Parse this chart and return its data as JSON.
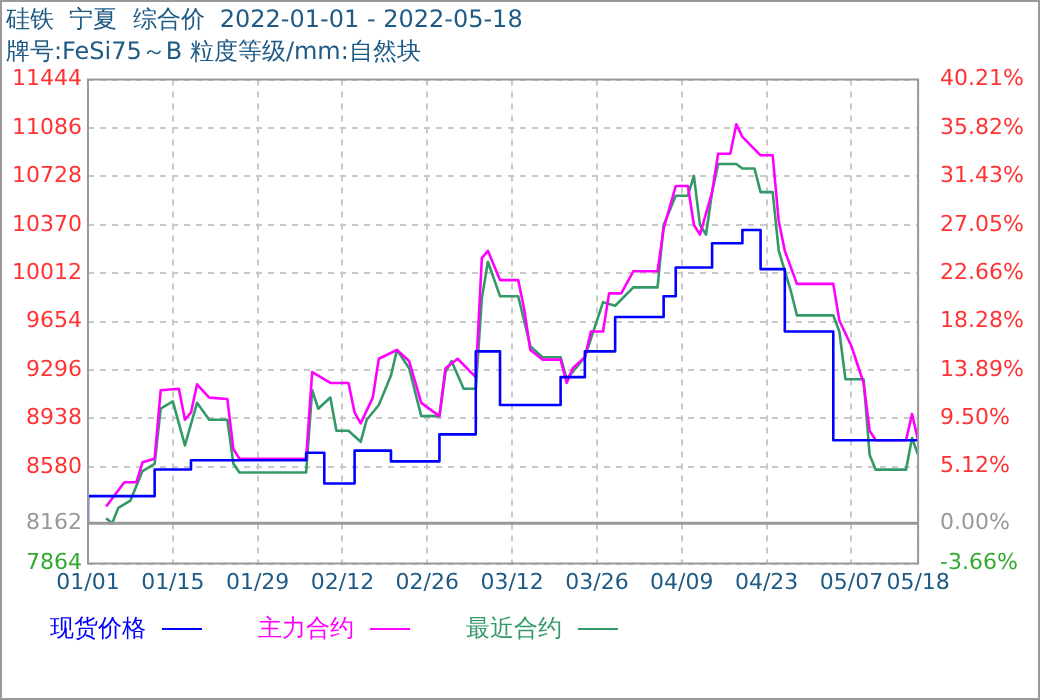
{
  "chart_data": {
    "type": "line",
    "title": "硅铁  宁夏  综合价  2022-01-01 - 2022-05-18",
    "subtitle": "牌号:FeSi75～B 粒度等级/mm:自然块",
    "xlim": [
      "2022-01-01",
      "2022-05-18"
    ],
    "xticks": [
      {
        "value": "2022-01-01",
        "label": "01/01"
      },
      {
        "value": "2022-01-15",
        "label": "01/15"
      },
      {
        "value": "2022-01-29",
        "label": "01/29"
      },
      {
        "value": "2022-02-12",
        "label": "02/12"
      },
      {
        "value": "2022-02-26",
        "label": "02/26"
      },
      {
        "value": "2022-03-12",
        "label": "03/12"
      },
      {
        "value": "2022-03-26",
        "label": "03/26"
      },
      {
        "value": "2022-04-09",
        "label": "04/09"
      },
      {
        "value": "2022-04-23",
        "label": "04/23"
      },
      {
        "value": "2022-05-07",
        "label": "05/07"
      },
      {
        "value": "2022-05-18",
        "label": "05/18"
      }
    ],
    "ylim": [
      7864,
      11444
    ],
    "yticks": [
      7864,
      8162,
      8580,
      8938,
      9296,
      9654,
      10012,
      10370,
      10728,
      11086,
      11444
    ],
    "y2lim": [
      -3.66,
      40.21
    ],
    "y2ticks": [
      {
        "value": -3.66,
        "label": "-3.66%"
      },
      {
        "value": 0,
        "label": "0.00%"
      },
      {
        "value": 5.12,
        "label": "5.12%"
      },
      {
        "value": 9.5,
        "label": "9.50%"
      },
      {
        "value": 13.89,
        "label": "13.89%"
      },
      {
        "value": 18.28,
        "label": "18.28%"
      },
      {
        "value": 22.66,
        "label": "22.66%"
      },
      {
        "value": 27.05,
        "label": "27.05%"
      },
      {
        "value": 31.43,
        "label": "31.43%"
      },
      {
        "value": 35.82,
        "label": "35.82%"
      },
      {
        "value": 40.21,
        "label": "40.21%"
      }
    ],
    "ref_lines": [
      {
        "axis": "y2",
        "value": 0,
        "color": "#999999",
        "line_style": "solid"
      }
    ],
    "grid": true,
    "legend": "bottom",
    "marker": "none",
    "series": [
      {
        "name": "现货价格",
        "type": "step",
        "color": "#0000ff",
        "x": [
          "2022-01-01",
          "2022-01-12",
          "2022-01-18",
          "2022-02-06",
          "2022-02-09",
          "2022-02-14",
          "2022-02-20",
          "2022-02-28",
          "2022-03-06",
          "2022-03-10",
          "2022-03-20",
          "2022-03-24",
          "2022-03-29",
          "2022-04-06",
          "2022-04-08",
          "2022-04-14",
          "2022-04-19",
          "2022-04-22",
          "2022-04-26",
          "2022-05-04",
          "2022-05-10",
          "2022-05-18"
        ],
        "values": [
          8162,
          8363,
          8560,
          8629,
          8684,
          8456,
          8700,
          8620,
          8820,
          9434,
          9037,
          9243,
          9434,
          9688,
          9842,
          10054,
          10233,
          10331,
          10042,
          9581,
          8776,
          8776
        ]
      },
      {
        "name": "主力合约",
        "color": "#ff00ff",
        "x": [
          "2022-01-04",
          "2022-01-07",
          "2022-01-09",
          "2022-01-10",
          "2022-01-12",
          "2022-01-13",
          "2022-01-16",
          "2022-01-17",
          "2022-01-18",
          "2022-01-19",
          "2022-01-21",
          "2022-01-24",
          "2022-01-25",
          "2022-01-26",
          "2022-02-06",
          "2022-02-07",
          "2022-02-08",
          "2022-02-10",
          "2022-02-13",
          "2022-02-14",
          "2022-02-15",
          "2022-02-17",
          "2022-02-18",
          "2022-02-21",
          "2022-02-23",
          "2022-02-25",
          "2022-02-28",
          "2022-03-01",
          "2022-03-03",
          "2022-03-06",
          "2022-03-07",
          "2022-03-08",
          "2022-03-10",
          "2022-03-13",
          "2022-03-14",
          "2022-03-15",
          "2022-03-17",
          "2022-03-20",
          "2022-03-21",
          "2022-03-22",
          "2022-03-24",
          "2022-03-25",
          "2022-03-27",
          "2022-03-28",
          "2022-03-30",
          "2022-04-01",
          "2022-04-05",
          "2022-04-06",
          "2022-04-08",
          "2022-04-10",
          "2022-04-11",
          "2022-04-12",
          "2022-04-14",
          "2022-04-15",
          "2022-04-17",
          "2022-04-18",
          "2022-04-19",
          "2022-04-22",
          "2022-04-24",
          "2022-04-25",
          "2022-04-26",
          "2022-04-28",
          "2022-05-04",
          "2022-05-05",
          "2022-05-07",
          "2022-05-09",
          "2022-05-10",
          "2022-05-11",
          "2022-05-16",
          "2022-05-17",
          "2022-05-18"
        ],
        "values": [
          8287,
          8466,
          8466,
          8613,
          8640,
          9146,
          9157,
          8928,
          8982,
          9190,
          9092,
          9081,
          8711,
          8640,
          8640,
          9281,
          9255,
          9200,
          9200,
          8982,
          8901,
          9092,
          9379,
          9444,
          9362,
          9053,
          8955,
          9309,
          9379,
          9243,
          10124,
          10178,
          9961,
          9961,
          9744,
          9444,
          9373,
          9373,
          9200,
          9309,
          9390,
          9581,
          9581,
          9863,
          9863,
          10026,
          10026,
          10341,
          10657,
          10657,
          10368,
          10298,
          10612,
          10895,
          10895,
          11113,
          11020,
          10884,
          10884,
          10396,
          10178,
          9933,
          9933,
          9662,
          9472,
          9200,
          8847,
          8776,
          8776,
          8971,
          8776
        ]
      },
      {
        "name": "最近合约",
        "color": "#339966",
        "x": [
          "2022-01-04",
          "2022-01-05",
          "2022-01-06",
          "2022-01-08",
          "2022-01-09",
          "2022-01-10",
          "2022-01-12",
          "2022-01-13",
          "2022-01-15",
          "2022-01-17",
          "2022-01-19",
          "2022-01-21",
          "2022-01-24",
          "2022-01-25",
          "2022-01-26",
          "2022-02-06",
          "2022-02-07",
          "2022-02-08",
          "2022-02-10",
          "2022-02-11",
          "2022-02-13",
          "2022-02-15",
          "2022-02-16",
          "2022-02-18",
          "2022-02-20",
          "2022-02-21",
          "2022-02-23",
          "2022-02-25",
          "2022-02-28",
          "2022-03-01",
          "2022-03-02",
          "2022-03-04",
          "2022-03-06",
          "2022-03-07",
          "2022-03-08",
          "2022-03-10",
          "2022-03-13",
          "2022-03-15",
          "2022-03-17",
          "2022-03-20",
          "2022-03-21",
          "2022-03-24",
          "2022-03-25",
          "2022-03-27",
          "2022-03-29",
          "2022-04-01",
          "2022-04-05",
          "2022-04-06",
          "2022-04-08",
          "2022-04-10",
          "2022-04-11",
          "2022-04-12",
          "2022-04-13",
          "2022-04-14",
          "2022-04-15",
          "2022-04-18",
          "2022-04-19",
          "2022-04-21",
          "2022-04-22",
          "2022-04-24",
          "2022-04-25",
          "2022-04-27",
          "2022-04-28",
          "2022-05-04",
          "2022-05-05",
          "2022-05-06",
          "2022-05-09",
          "2022-05-10",
          "2022-05-11",
          "2022-05-16",
          "2022-05-17",
          "2022-05-18"
        ],
        "values": [
          8200,
          8162,
          8276,
          8330,
          8439,
          8548,
          8602,
          9010,
          9064,
          8738,
          9053,
          8928,
          8928,
          8602,
          8538,
          8538,
          9146,
          9010,
          9092,
          8847,
          8847,
          8765,
          8928,
          9037,
          9255,
          9444,
          9309,
          8955,
          8955,
          9281,
          9362,
          9157,
          9157,
          9826,
          10097,
          9842,
          9842,
          9472,
          9390,
          9390,
          9228,
          9390,
          9526,
          9798,
          9771,
          9907,
          9907,
          10368,
          10585,
          10585,
          10732,
          10368,
          10298,
          10612,
          10820,
          10820,
          10786,
          10786,
          10612,
          10612,
          10178,
          9880,
          9700,
          9700,
          9581,
          9228,
          9228,
          8668,
          8559,
          8559,
          8793,
          8668
        ]
      }
    ]
  }
}
